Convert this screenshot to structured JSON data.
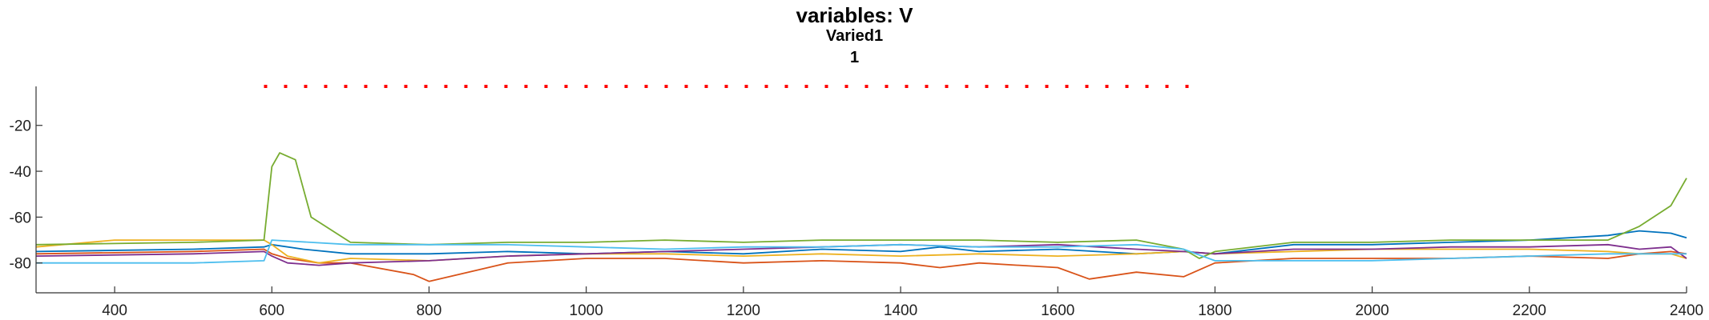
{
  "title": "variables: V",
  "subtitle": "Varied1",
  "subtitle2": "1",
  "chart_data": {
    "type": "line",
    "title": "variables: V",
    "subtitle": [
      "Varied1",
      "1"
    ],
    "xlabel": "",
    "ylabel": "",
    "xlim": [
      300,
      2400
    ],
    "ylim": [
      -93,
      -3
    ],
    "xticks": [
      400,
      600,
      800,
      1000,
      1200,
      1400,
      1600,
      1800,
      2000,
      2200,
      2400
    ],
    "yticks": [
      -80,
      -60,
      -40,
      -20
    ],
    "xtick_labels": [
      "400",
      "600",
      "800",
      "1000",
      "1200",
      "1400",
      "1600",
      "1800",
      "2000",
      "2200",
      "2400"
    ],
    "ytick_labels": [
      "-80",
      "-60",
      "-40",
      "-20"
    ],
    "grid": false,
    "legend": "none",
    "series": [
      {
        "color": "#0072BD",
        "x": [
          300,
          500,
          590,
          600,
          640,
          700,
          800,
          900,
          1000,
          1100,
          1200,
          1300,
          1400,
          1450,
          1500,
          1600,
          1700,
          1760,
          1800,
          1900,
          2000,
          2100,
          2200,
          2300,
          2340,
          2380,
          2400
        ],
        "y": [
          -75,
          -74,
          -73,
          -72,
          -74,
          -76,
          -76,
          -75,
          -76,
          -75,
          -76,
          -74,
          -75,
          -73,
          -75,
          -74,
          -76,
          -75,
          -76,
          -72,
          -72,
          -71,
          -70,
          -68,
          -66,
          -67,
          -69
        ]
      },
      {
        "color": "#D95319",
        "x": [
          300,
          500,
          590,
          600,
          620,
          660,
          700,
          780,
          800,
          900,
          1000,
          1100,
          1200,
          1300,
          1400,
          1450,
          1500,
          1600,
          1640,
          1700,
          1760,
          1800,
          1900,
          2000,
          2100,
          2200,
          2300,
          2340,
          2380,
          2400
        ],
        "y": [
          -76,
          -75,
          -74,
          -76,
          -78,
          -80,
          -80,
          -85,
          -88,
          -80,
          -78,
          -78,
          -80,
          -79,
          -80,
          -82,
          -80,
          -82,
          -87,
          -84,
          -86,
          -80,
          -78,
          -78,
          -78,
          -77,
          -78,
          -76,
          -75,
          -76
        ]
      },
      {
        "color": "#EDB120",
        "x": [
          300,
          400,
          500,
          590,
          600,
          620,
          660,
          700,
          800,
          900,
          1000,
          1100,
          1200,
          1300,
          1400,
          1500,
          1600,
          1700,
          1760,
          1800,
          1900,
          2000,
          2100,
          2200,
          2300,
          2340,
          2380,
          2400
        ],
        "y": [
          -73,
          -70,
          -70,
          -70,
          -72,
          -77,
          -80,
          -78,
          -79,
          -77,
          -76,
          -76,
          -77,
          -76,
          -77,
          -76,
          -77,
          -76,
          -75,
          -76,
          -75,
          -74,
          -74,
          -74,
          -75,
          -76,
          -76,
          -78
        ]
      },
      {
        "color": "#7E2F8E",
        "x": [
          300,
          500,
          590,
          600,
          620,
          660,
          700,
          800,
          900,
          1000,
          1100,
          1200,
          1300,
          1400,
          1500,
          1600,
          1700,
          1760,
          1800,
          1900,
          2000,
          2100,
          2200,
          2300,
          2340,
          2380,
          2400
        ],
        "y": [
          -77,
          -76,
          -75,
          -77,
          -80,
          -81,
          -80,
          -79,
          -77,
          -76,
          -75,
          -74,
          -73,
          -72,
          -73,
          -72,
          -74,
          -75,
          -76,
          -74,
          -74,
          -73,
          -73,
          -72,
          -74,
          -73,
          -78
        ]
      },
      {
        "color": "#77AC30",
        "x": [
          300,
          500,
          590,
          600,
          610,
          630,
          650,
          700,
          800,
          900,
          1000,
          1100,
          1200,
          1300,
          1400,
          1500,
          1600,
          1700,
          1760,
          1780,
          1800,
          1900,
          2000,
          2100,
          2200,
          2300,
          2340,
          2380,
          2400
        ],
        "y": [
          -72,
          -71,
          -70,
          -38,
          -32,
          -35,
          -60,
          -71,
          -72,
          -71,
          -71,
          -70,
          -71,
          -70,
          -70,
          -70,
          -71,
          -70,
          -74,
          -78,
          -75,
          -71,
          -71,
          -70,
          -70,
          -70,
          -64,
          -55,
          -43
        ]
      },
      {
        "color": "#4DBEEE",
        "x": [
          300,
          500,
          590,
          600,
          700,
          800,
          900,
          1000,
          1100,
          1200,
          1300,
          1400,
          1500,
          1600,
          1700,
          1760,
          1800,
          1900,
          2000,
          2100,
          2200,
          2300,
          2400
        ],
        "y": [
          -80,
          -80,
          -79,
          -70,
          -72,
          -72,
          -72,
          -73,
          -74,
          -73,
          -73,
          -72,
          -73,
          -73,
          -72,
          -74,
          -79,
          -79,
          -79,
          -78,
          -77,
          -76,
          -76
        ]
      }
    ],
    "annotation": {
      "type": "dotted-line",
      "color": "#FF0000",
      "x": [
        590,
        1780
      ],
      "y": -3
    }
  }
}
